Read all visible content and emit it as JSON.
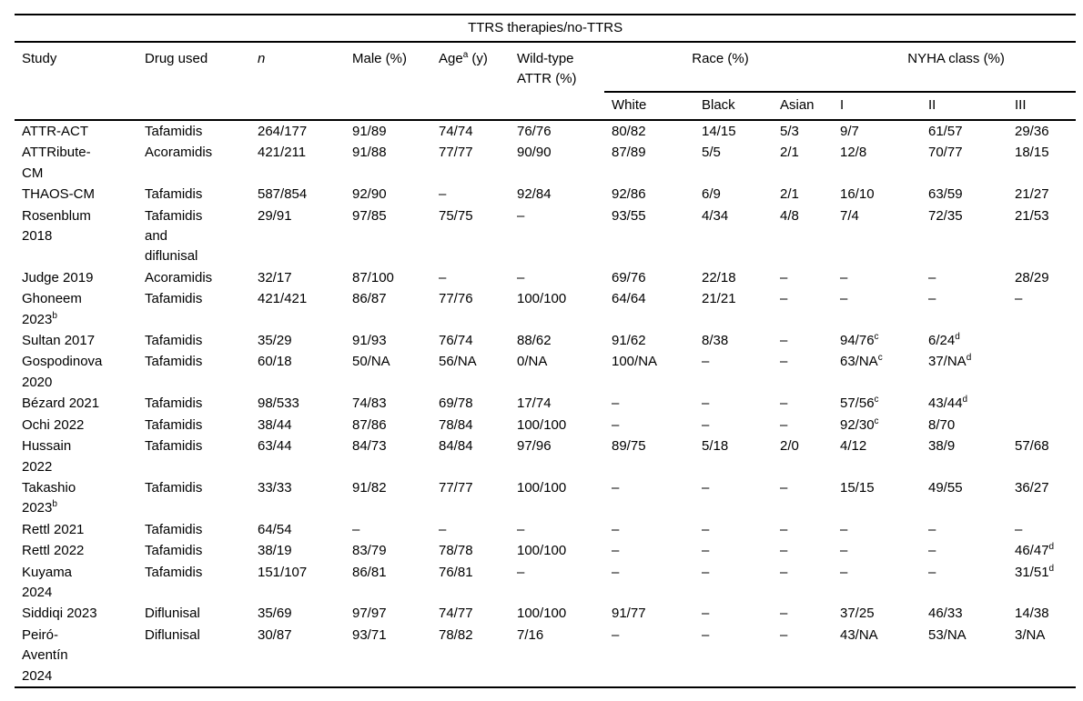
{
  "table": {
    "title": "TTRS therapies/no-TTRS",
    "columns": [
      "Study",
      "Drug used",
      "n",
      "Male (%)",
      "Age^a (y)",
      "Wild-type\nATTR (%)"
    ],
    "group_headers": [
      {
        "label": "Race (%)",
        "span": 3
      },
      {
        "label": "NYHA class (%)",
        "span": 3
      }
    ],
    "sub_columns": [
      "White",
      "Black",
      "Asian",
      "I",
      "II",
      "III"
    ],
    "column_keys": [
      "study",
      "drug",
      "n",
      "male",
      "age",
      "wildtype",
      "race-white",
      "race-black",
      "race-asian",
      "nyha-i",
      "nyha-ii",
      "nyha-iii"
    ],
    "rows": [
      [
        "ATTR-ACT",
        "Tafamidis",
        "264/177",
        "91/89",
        "74/74",
        "76/76",
        "80/82",
        "14/15",
        "5/3",
        "9/7",
        "61/57",
        "29/36"
      ],
      [
        "ATTRibute-\nCM",
        "Acoramidis",
        "421/211",
        "91/88",
        "77/77",
        "90/90",
        "87/89",
        "5/5",
        "2/1",
        "12/8",
        "70/77",
        "18/15"
      ],
      [
        "THAOS-CM",
        "Tafamidis",
        "587/854",
        "92/90",
        "–",
        "92/84",
        "92/86",
        "6/9",
        "2/1",
        "16/10",
        "63/59",
        "21/27"
      ],
      [
        "Rosenblum\n2018",
        "Tafamidis\nand\ndiflunisal",
        "29/91",
        "97/85",
        "75/75",
        "–",
        "93/55",
        "4/34",
        "4/8",
        "7/4",
        "72/35",
        "21/53"
      ],
      [
        "Judge 2019",
        "Acoramidis",
        "32/17",
        "87/100",
        "–",
        "–",
        "69/76",
        "22/18",
        "–",
        "–",
        "–",
        "28/29"
      ],
      [
        "Ghoneem\n2023^b",
        "Tafamidis",
        "421/421",
        "86/87",
        "77/76",
        "100/100",
        "64/64",
        "21/21",
        "–",
        "–",
        "–",
        "–"
      ],
      [
        "Sultan 2017",
        "Tafamidis",
        "35/29",
        "91/93",
        "76/74",
        "88/62",
        "91/62",
        "8/38",
        "–",
        "94/76^c",
        "6/24^d",
        ""
      ],
      [
        "Gospodinova\n2020",
        "Tafamidis",
        "60/18",
        "50/NA",
        "56/NA",
        "0/NA",
        "100/NA",
        "–",
        "–",
        "63/NA^c",
        "37/NA^d",
        ""
      ],
      [
        "Bézard 2021",
        "Tafamidis",
        "98/533",
        "74/83",
        "69/78",
        "17/74",
        "–",
        "–",
        "–",
        "57/56^c",
        "43/44^d",
        ""
      ],
      [
        "Ochi 2022",
        "Tafamidis",
        "38/44",
        "87/86",
        "78/84",
        "100/100",
        "–",
        "–",
        "–",
        "92/30^c",
        "8/70",
        ""
      ],
      [
        "Hussain\n2022",
        "Tafamidis",
        "63/44",
        "84/73",
        "84/84",
        "97/96",
        "89/75",
        "5/18",
        "2/0",
        "4/12",
        "38/9",
        "57/68"
      ],
      [
        "Takashio\n2023^b",
        "Tafamidis",
        "33/33",
        "91/82",
        "77/77",
        "100/100",
        "–",
        "–",
        "–",
        "15/15",
        "49/55",
        "36/27"
      ],
      [
        "Rettl 2021",
        "Tafamidis",
        "64/54",
        "–",
        "–",
        "–",
        "–",
        "–",
        "–",
        "–",
        "–",
        "–"
      ],
      [
        "Rettl 2022",
        "Tafamidis",
        "38/19",
        "83/79",
        "78/78",
        "100/100",
        "–",
        "–",
        "–",
        "–",
        "–",
        "46/47^d"
      ],
      [
        "Kuyama\n2024",
        "Tafamidis",
        "151/107",
        "86/81",
        "76/81",
        "–",
        "–",
        "–",
        "–",
        "–",
        "–",
        "31/51^d"
      ],
      [
        "Siddiqi 2023",
        "Diflunisal",
        "35/69",
        "97/97",
        "74/77",
        "100/100",
        "91/77",
        "–",
        "–",
        "37/25",
        "46/33",
        "14/38"
      ],
      [
        "Peiró-\nAventín\n2024",
        "Diflunisal",
        "30/87",
        "93/71",
        "78/82",
        "7/16",
        "–",
        "–",
        "–",
        "43/NA",
        "53/NA",
        "3/NA"
      ]
    ]
  }
}
